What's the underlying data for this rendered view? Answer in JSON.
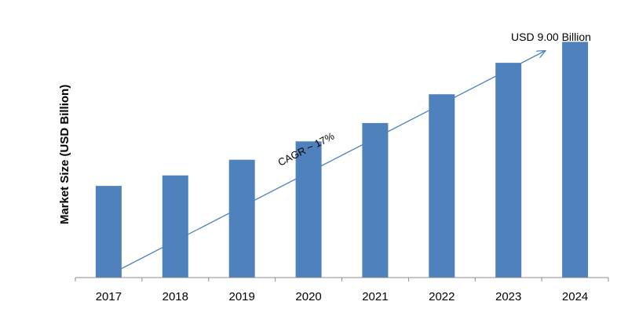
{
  "chart_data": {
    "type": "bar",
    "categories": [
      "2017",
      "2018",
      "2019",
      "2020",
      "2021",
      "2022",
      "2023",
      "2024"
    ],
    "values": [
      3.5,
      3.9,
      4.5,
      5.2,
      5.9,
      7.0,
      8.2,
      9.0
    ],
    "xlabel": "",
    "ylabel": "Market Size (USD Billion)",
    "ylim": [
      0,
      9.7
    ],
    "grid": false,
    "legend": "none",
    "bar_color": "#4f81bd",
    "annotations": {
      "end_value": "USD 9.00 Billion",
      "cagr": "CAGR ~ 17%"
    },
    "trend_arrow_color": "#4f81bd"
  }
}
